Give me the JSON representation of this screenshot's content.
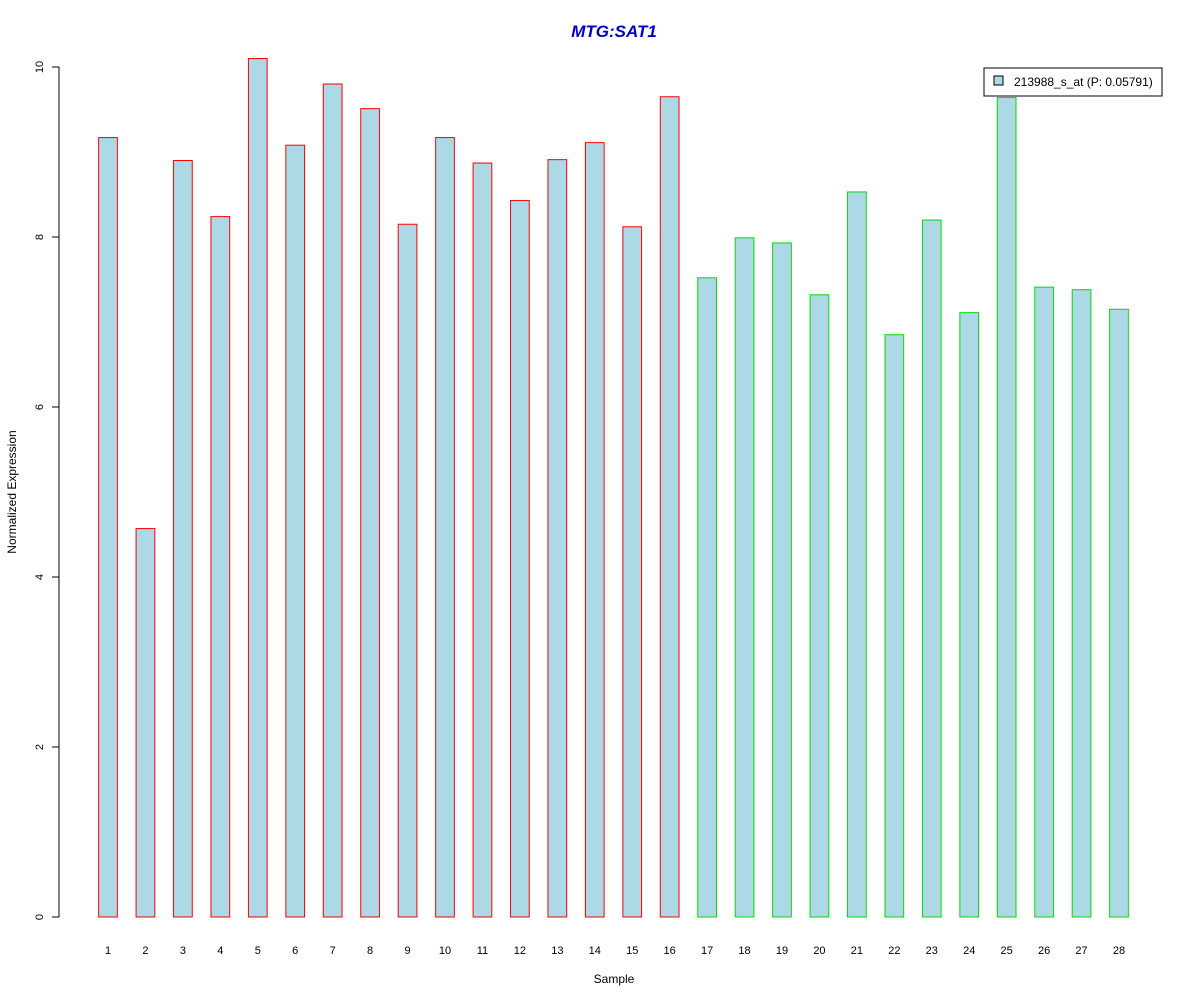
{
  "chart_data": {
    "type": "bar",
    "title": "MTG:SAT1",
    "xlabel": "Sample",
    "ylabel": "Normalized Expression",
    "ylim": [
      0,
      10
    ],
    "yticks": [
      0,
      2,
      4,
      6,
      8,
      10
    ],
    "categories": [
      "1",
      "2",
      "3",
      "4",
      "5",
      "6",
      "7",
      "8",
      "9",
      "10",
      "11",
      "12",
      "13",
      "14",
      "15",
      "16",
      "17",
      "18",
      "19",
      "20",
      "21",
      "22",
      "23",
      "24",
      "25",
      "26",
      "27",
      "28"
    ],
    "series": [
      {
        "name": "213988_s_at (P: 0.05791)",
        "values": [
          9.17,
          4.57,
          8.9,
          8.24,
          10.1,
          9.08,
          9.8,
          9.51,
          8.15,
          9.17,
          8.87,
          8.43,
          8.91,
          9.11,
          8.12,
          9.65,
          7.52,
          7.99,
          7.93,
          7.32,
          8.53,
          6.85,
          8.2,
          7.11,
          9.64,
          7.41,
          7.38,
          7.15
        ]
      }
    ],
    "groups": [
      {
        "samples": [
          1,
          16
        ],
        "border_color": "#ff0000"
      },
      {
        "samples": [
          17,
          28
        ],
        "border_color": "#00dd00"
      }
    ],
    "legend_placement": "top-right",
    "grid": false,
    "colors": {
      "bar_fill": "#add8e6",
      "title": "#0000cc",
      "axis": "#000000"
    }
  }
}
